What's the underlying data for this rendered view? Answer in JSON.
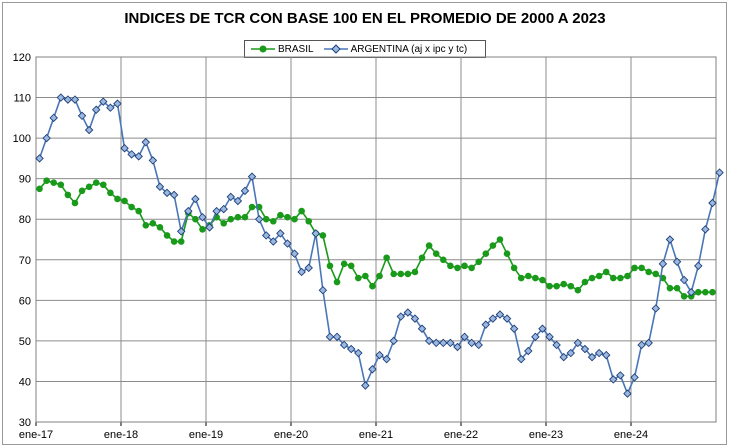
{
  "chart_data": {
    "type": "line",
    "title": "INDICES DE TCR CON BASE 100 EN EL PROMEDIO DE 2000 A 2023",
    "xlabel": "",
    "ylabel": "",
    "ylim": [
      30,
      120
    ],
    "yticks": [
      "30",
      "40",
      "50",
      "60",
      "70",
      "80",
      "90",
      "100",
      "110",
      "120"
    ],
    "xticks": [
      "ene-17",
      "ene-18",
      "ene-19",
      "ene-20",
      "ene-21",
      "ene-22",
      "ene-23",
      "ene-24"
    ],
    "grid": true,
    "legend": "top-center",
    "series": [
      {
        "name": "BRASIL",
        "color": "#1a9a1a",
        "marker": "circle",
        "values": [
          87.5,
          89.5,
          89.0,
          88.5,
          86.0,
          84.0,
          87.0,
          88.0,
          89.0,
          88.5,
          86.5,
          85.0,
          84.5,
          83.0,
          82.0,
          78.5,
          79.0,
          78.0,
          76.0,
          74.5,
          74.5,
          81.5,
          80.0,
          77.5,
          78.5,
          80.5,
          79.0,
          80.0,
          80.5,
          80.5,
          83.0,
          83.0,
          80.0,
          79.5,
          81.0,
          80.5,
          80.0,
          82.0,
          79.5,
          76.5,
          76.0,
          68.5,
          64.5,
          69.0,
          68.5,
          65.5,
          66.0,
          63.5,
          66.0,
          70.5,
          66.5,
          66.5,
          66.5,
          67.0,
          70.5,
          73.5,
          71.5,
          70.0,
          68.5,
          68.0,
          68.5,
          68.0,
          69.5,
          71.5,
          73.5,
          75.0,
          71.5,
          68.0,
          65.5,
          66.0,
          65.5,
          65.0,
          63.5,
          63.5,
          64.0,
          63.5,
          62.5,
          64.5,
          65.5,
          66.0,
          67.0,
          65.5,
          65.5,
          66.0,
          68.0,
          68.0,
          67.0,
          66.5,
          65.5,
          63.0,
          63.0,
          61.0,
          61.0,
          62.0,
          62.0,
          62.0
        ]
      },
      {
        "name": "ARGENTINA (aj x ipc y tc)",
        "color": "#4a76b8",
        "marker": "diamond",
        "values": [
          95.0,
          100.0,
          105.0,
          110.0,
          109.5,
          109.5,
          105.5,
          102.0,
          107.0,
          109.0,
          107.5,
          108.5,
          97.5,
          96.0,
          95.5,
          99.0,
          94.5,
          88.0,
          86.5,
          86.0,
          77.0,
          82.0,
          85.0,
          80.5,
          78.0,
          82.0,
          82.5,
          85.5,
          84.5,
          87.0,
          90.5,
          80.0,
          76.0,
          74.5,
          76.5,
          74.0,
          71.5,
          67.0,
          68.0,
          76.5,
          62.5,
          51.0,
          51.0,
          49.0,
          48.0,
          47.0,
          39.0,
          43.0,
          46.5,
          45.5,
          50.0,
          56.0,
          57.0,
          55.5,
          53.0,
          50.0,
          49.5,
          49.5,
          49.5,
          48.5,
          51.0,
          49.5,
          49.0,
          54.0,
          55.5,
          56.5,
          55.5,
          53.0,
          45.5,
          47.5,
          51.0,
          53.0,
          51.0,
          49.0,
          46.0,
          47.0,
          49.5,
          48.0,
          46.0,
          47.0,
          46.5,
          40.5,
          41.5,
          37.0,
          41.0,
          49.0,
          49.5,
          58.0,
          69.0,
          75.0,
          69.5,
          65.0,
          62.0,
          68.5,
          77.5,
          84.0,
          91.5
        ]
      }
    ]
  }
}
